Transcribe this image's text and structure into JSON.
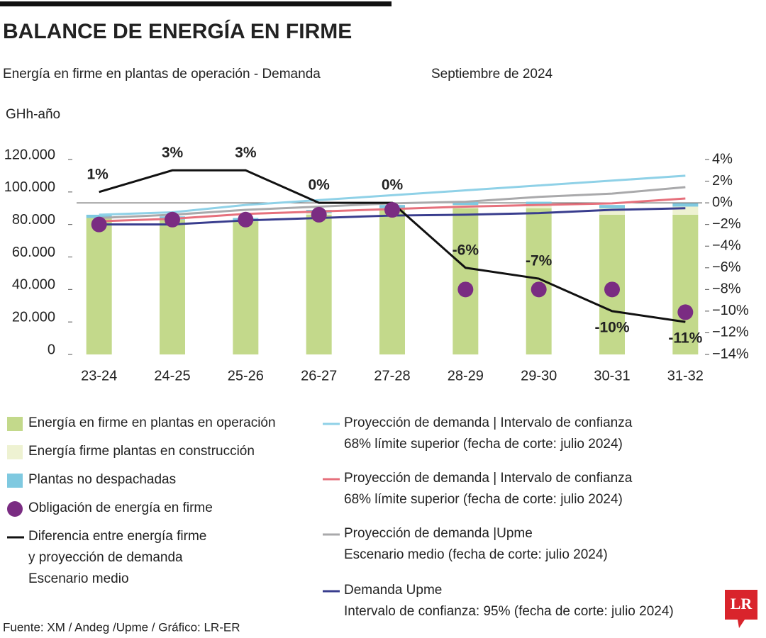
{
  "title": "BALANCE DE ENERGÍA EN FIRME",
  "subtitle": "Energía en firme en plantas de operación - Demanda",
  "date": "Septiembre de 2024",
  "source": "Fuente: XM / Andeg /Upme / Gráfico: LR-ER",
  "logo": "LR",
  "chart_data": {
    "type": "bar",
    "y_label": "GHh-año",
    "categories": [
      "23-24",
      "24-25",
      "25-26",
      "26-27",
      "27-28",
      "28-29",
      "29-30",
      "30-31",
      "31-32"
    ],
    "ylim": [
      0,
      120000
    ],
    "yticks": [
      0,
      {
        "value": 20000,
        "label": "20.000"
      },
      {
        "value": 40000,
        "label": "40.000"
      },
      {
        "value": 60000,
        "label": "60.000"
      },
      {
        "value": 80000,
        "label": "80.000"
      },
      {
        "value": 100000,
        "label": "100.000"
      },
      {
        "value": 120000,
        "label": "120.000"
      }
    ],
    "y2lim": [
      -14,
      4
    ],
    "y2ticks": [
      {
        "value": 4,
        "label": "4%"
      },
      {
        "value": 2,
        "label": "2%"
      },
      {
        "value": 0,
        "label": "0%"
      },
      {
        "value": -2,
        "label": "−2%"
      },
      {
        "value": -4,
        "label": "−4%"
      },
      {
        "value": -6,
        "label": "−6%"
      },
      {
        "value": -8,
        "label": "−8%"
      },
      {
        "value": -10,
        "label": "−10%"
      },
      {
        "value": -12,
        "label": "−12%"
      },
      {
        "value": -14,
        "label": "−14%"
      }
    ],
    "series": [
      {
        "name": "Energía en firme en plantas en operación",
        "type": "bar",
        "color": "#c3d98b",
        "values": [
          84000,
          83000,
          82000,
          86000,
          89000,
          90000,
          90000,
          86000,
          86000
        ]
      },
      {
        "name": "Energía firme plantas en construcción",
        "type": "bar",
        "color": "#eef2d2",
        "values": [
          0,
          0,
          0,
          1000,
          1000,
          2000,
          2000,
          4000,
          5000
        ]
      },
      {
        "name": "Plantas no despachadas",
        "type": "bar",
        "color": "#7fc9e0",
        "values": [
          2000,
          2000,
          2000,
          2000,
          2000,
          2000,
          2000,
          2000,
          2000
        ]
      },
      {
        "name": "Proyección de demanda | Intervalo de confianza\n68% límite superior (fecha de corte: julio 2024)",
        "type": "line",
        "color": "#8fd1e7",
        "values": [
          86000,
          87500,
          92000,
          95000,
          98000,
          101000,
          104000,
          107000,
          110000
        ]
      },
      {
        "name": "Proyección de demanda | Intervalo de confianza\n68% límite superior (fecha de corte: julio 2024)",
        "type": "line",
        "color": "#e6707c",
        "values": [
          82000,
          83500,
          86500,
          88000,
          89500,
          91000,
          92000,
          93000,
          96000
        ]
      },
      {
        "name": "Proyección de demanda |Upme\nEscenario medio (fecha de corte: julio 2024)",
        "type": "line",
        "color": "#a9a9ab",
        "values": [
          84000,
          86000,
          89000,
          91000,
          93000,
          94000,
          97000,
          99000,
          103000
        ]
      },
      {
        "name": "Demanda Upme\nIntervalo de confianza: 95% (fecha de corte: julio 2024)",
        "type": "line",
        "color": "#393d8e",
        "values": [
          80000,
          80000,
          82500,
          84000,
          85500,
          86000,
          87000,
          89000,
          90000
        ]
      },
      {
        "name": "Obligación de energía en firme",
        "type": "scatter",
        "color": "#7a2c82",
        "values": [
          80000,
          83000,
          83000,
          86000,
          89000,
          40000,
          40000,
          40000,
          26000
        ]
      },
      {
        "name": "Diferencia entre energía firme\ny proyección de demanda\nEscenario medio",
        "type": "line",
        "axis": "y2",
        "color": "#111111",
        "values": [
          1,
          3,
          3,
          0,
          0,
          -6,
          -7,
          -10,
          -11
        ],
        "value_labels": [
          "1%",
          "3%",
          "3%",
          "0%",
          "0%",
          "-6%",
          "-7%",
          "-10%",
          "-11%"
        ]
      }
    ]
  }
}
